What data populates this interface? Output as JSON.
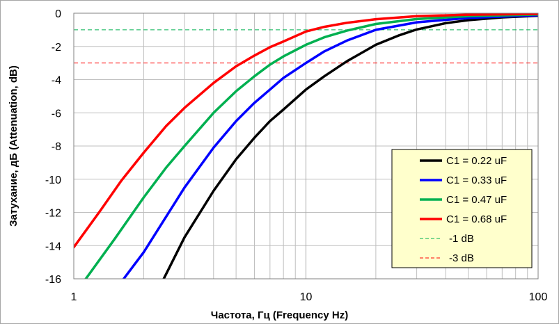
{
  "chart_data": {
    "type": "line",
    "title": "",
    "xlabel": "Частота, Гц    (Frequency Hz)",
    "ylabel": "Затухание, дБ   (Attenuation, dB)",
    "x_scale": "log",
    "xlim": [
      1,
      100
    ],
    "ylim": [
      -16,
      0
    ],
    "x_ticks": [
      1,
      10,
      100
    ],
    "y_ticks": [
      0,
      -2,
      -4,
      -6,
      -8,
      -10,
      -12,
      -14,
      -16
    ],
    "x_tick_labels": [
      "1",
      "10",
      "100"
    ],
    "y_tick_labels": [
      "0",
      "-2",
      "-4",
      "-6",
      "-8",
      "-10",
      "-12",
      "-14",
      "-16"
    ],
    "grid": true,
    "legend_position": "lower-right",
    "series": [
      {
        "name": "C1 = 0.22 uF",
        "color": "#000000",
        "x": [
          2.4,
          3,
          4,
          5,
          6,
          7,
          8,
          10,
          12,
          15,
          20,
          25,
          30,
          40,
          50,
          70,
          100
        ],
        "y": [
          -16.2,
          -13.5,
          -10.7,
          -8.8,
          -7.5,
          -6.5,
          -5.8,
          -4.6,
          -3.8,
          -2.9,
          -1.9,
          -1.35,
          -0.98,
          -0.6,
          -0.42,
          -0.25,
          -0.15
        ]
      },
      {
        "name": "C1 = 0.33 uF",
        "color": "#0000ff",
        "x": [
          1.6,
          2,
          3,
          4,
          5,
          6,
          7,
          8,
          10,
          12,
          15,
          20,
          30,
          50,
          100
        ],
        "y": [
          -16.2,
          -14.4,
          -10.5,
          -8.1,
          -6.5,
          -5.4,
          -4.6,
          -3.9,
          -3.0,
          -2.3,
          -1.65,
          -1.0,
          -0.55,
          -0.28,
          -0.12
        ]
      },
      {
        "name": "C1 = 0.47 uF",
        "color": "#00b050",
        "x": [
          1.1,
          1.5,
          2,
          2.5,
          3,
          4,
          5,
          6,
          7,
          8,
          10,
          12,
          15,
          20,
          30,
          50,
          100
        ],
        "y": [
          -16.2,
          -13.6,
          -11.1,
          -9.3,
          -8.0,
          -6.0,
          -4.7,
          -3.8,
          -3.1,
          -2.6,
          -1.9,
          -1.45,
          -1.05,
          -0.65,
          -0.35,
          -0.18,
          -0.08
        ]
      },
      {
        "name": "C1 = 0.68 uF",
        "color": "#ff0000",
        "x": [
          1,
          1.3,
          1.6,
          2,
          2.5,
          3,
          4,
          5,
          6,
          7,
          8,
          10,
          12,
          15,
          20,
          30,
          50,
          100
        ],
        "y": [
          -14.1,
          -11.9,
          -10.1,
          -8.4,
          -6.8,
          -5.7,
          -4.2,
          -3.2,
          -2.55,
          -2.05,
          -1.7,
          -1.1,
          -0.82,
          -0.58,
          -0.36,
          -0.18,
          -0.09,
          -0.04
        ]
      }
    ],
    "reference_lines": [
      {
        "name": "-1 dB",
        "y": -1,
        "color": "#00b050",
        "style": "dashed"
      },
      {
        "name": "-3 dB",
        "y": -3,
        "color": "#ff0000",
        "style": "dashed"
      }
    ]
  }
}
